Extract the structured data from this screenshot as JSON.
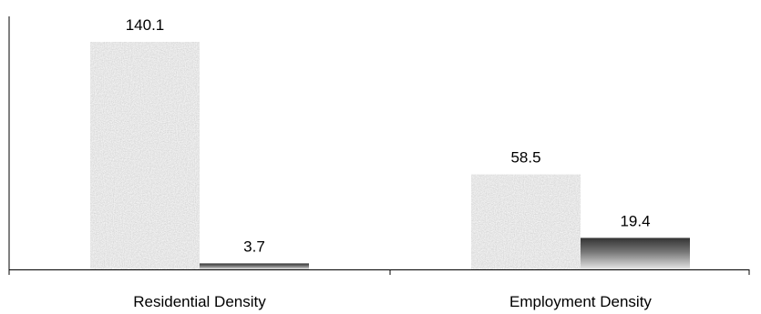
{
  "chart_data": {
    "type": "bar",
    "categories": [
      "Residential Density",
      "Employment Density"
    ],
    "series": [
      {
        "values": [
          140.1,
          58.5
        ],
        "color": "#d9d9d9",
        "pattern": "granite-texture"
      },
      {
        "values": [
          3.7,
          19.4
        ],
        "color": "#555555",
        "pattern": "gradient-dark-to-light"
      }
    ],
    "data_labels": [
      [
        "140.1",
        "58.5"
      ],
      [
        "3.7",
        "19.4"
      ]
    ],
    "title": "",
    "xlabel": "",
    "ylabel": "",
    "ylim": [
      0,
      150
    ],
    "grid": false,
    "legend": "none"
  }
}
